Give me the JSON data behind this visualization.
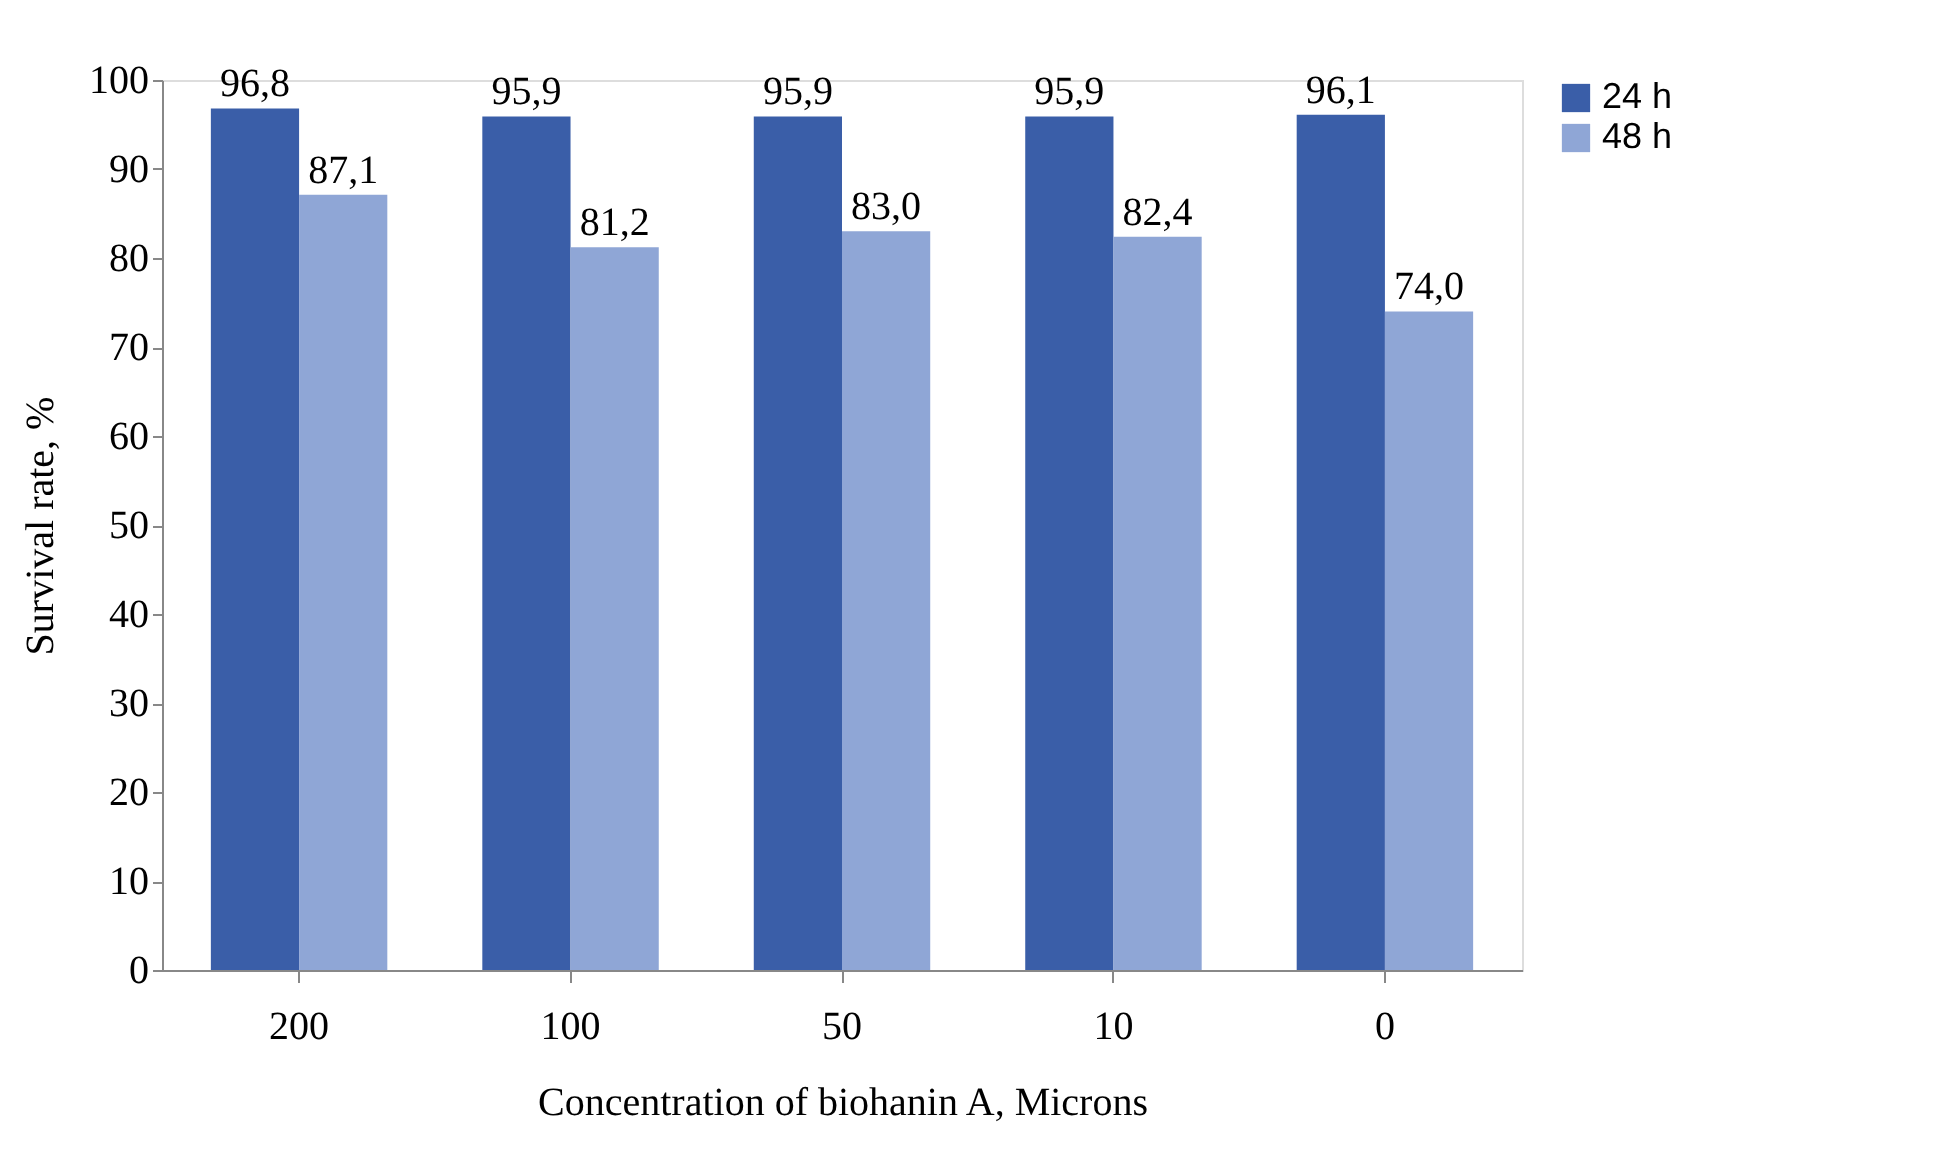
{
  "chart_data": {
    "type": "bar",
    "xlabel": "Concentration  of biohanin  A, Microns",
    "ylabel": "Survival  rate, %",
    "categories": [
      "200",
      "100",
      "50",
      "10",
      "0"
    ],
    "series": [
      {
        "name": "24 h",
        "color": "#3a5ea8",
        "values": [
          96.8,
          95.9,
          95.9,
          95.9,
          96.1
        ],
        "value_labels": [
          "96,8",
          "95,9",
          "95,9",
          "95,9",
          "96,1"
        ]
      },
      {
        "name": "48 h",
        "color": "#8fa6d6",
        "values": [
          87.1,
          81.2,
          83.0,
          82.4,
          74.0
        ],
        "value_labels": [
          "87,1",
          "81,2",
          "83,0",
          "82,4",
          "74,0"
        ]
      }
    ],
    "ylim": [
      0,
      100
    ],
    "yticks": [
      0,
      10,
      20,
      30,
      40,
      50,
      60,
      70,
      80,
      90,
      100
    ],
    "grid": false,
    "legend": "right"
  }
}
